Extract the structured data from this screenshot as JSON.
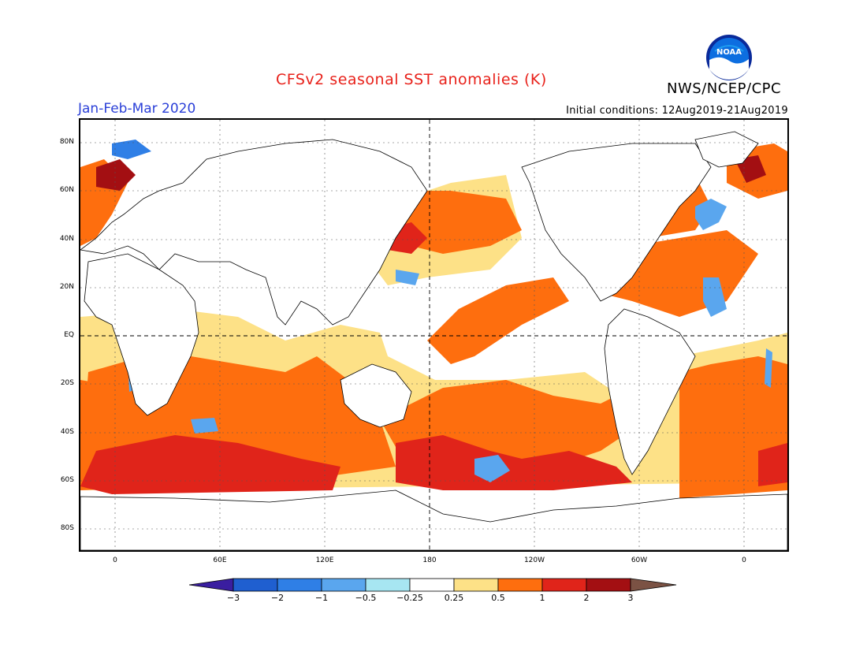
{
  "header": {
    "title": "CFSv2 seasonal SST anomalies (K)",
    "agency": "NWS/NCEP/CPC",
    "period": "Jan-Feb-Mar 2020",
    "initial_conditions": "Initial conditions: 12Aug2019-21Aug2019",
    "logo_text": "NOAA"
  },
  "map": {
    "lat_labels": [
      "80N",
      "60N",
      "40N",
      "20N",
      "EQ",
      "20S",
      "40S",
      "60S",
      "80S"
    ],
    "lon_labels": [
      "0",
      "60E",
      "120E",
      "180",
      "120W",
      "60W",
      "0"
    ]
  },
  "colorbar": {
    "labels": [
      "−3",
      "−2",
      "−1",
      "−0.5",
      "−0.25",
      "0.25",
      "0.5",
      "1",
      "2",
      "3"
    ],
    "colors": [
      "#3a1ea0",
      "#1f5fd0",
      "#2f7fe6",
      "#5aa6ee",
      "#a7e6f2",
      "#ffffff",
      "#fde187",
      "#fe6e0e",
      "#e0241a",
      "#a30f12",
      "#7b5244"
    ]
  }
}
